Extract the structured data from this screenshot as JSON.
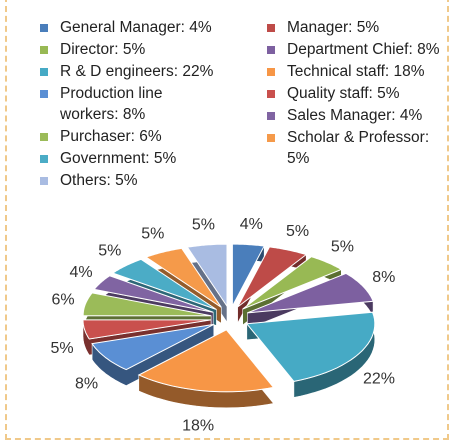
{
  "chart_data": {
    "type": "pie",
    "categories": [
      "General Manager: 4%",
      "Manager: 5%",
      "Director: 5%",
      "Department Chief: 8%",
      "R & D engineers: 22%",
      "Technical staff: 18%",
      "Production line workers: 8%",
      "Quality staff: 5%",
      "Purchaser: 6%",
      "Sales Manager: 4%",
      "Government: 5%",
      "Scholar & Professor: 5%",
      "Others: 5%"
    ],
    "values": [
      4,
      5,
      5,
      8,
      22,
      18,
      8,
      5,
      6,
      4,
      5,
      5,
      5
    ],
    "value_labels": [
      "4%",
      "5%",
      "5%",
      "8%",
      "22%",
      "18%",
      "8%",
      "5%",
      "6%",
      "4%",
      "5%",
      "5%",
      "5%"
    ],
    "colors": [
      "#4a7ebb",
      "#be4b48",
      "#98b954",
      "#7d60a0",
      "#46aac5",
      "#f79646",
      "#5a8fd4",
      "#c9504d",
      "#9bbb59",
      "#8064a2",
      "#4bacc6",
      "#f59a4a",
      "#a9bce2"
    ]
  }
}
